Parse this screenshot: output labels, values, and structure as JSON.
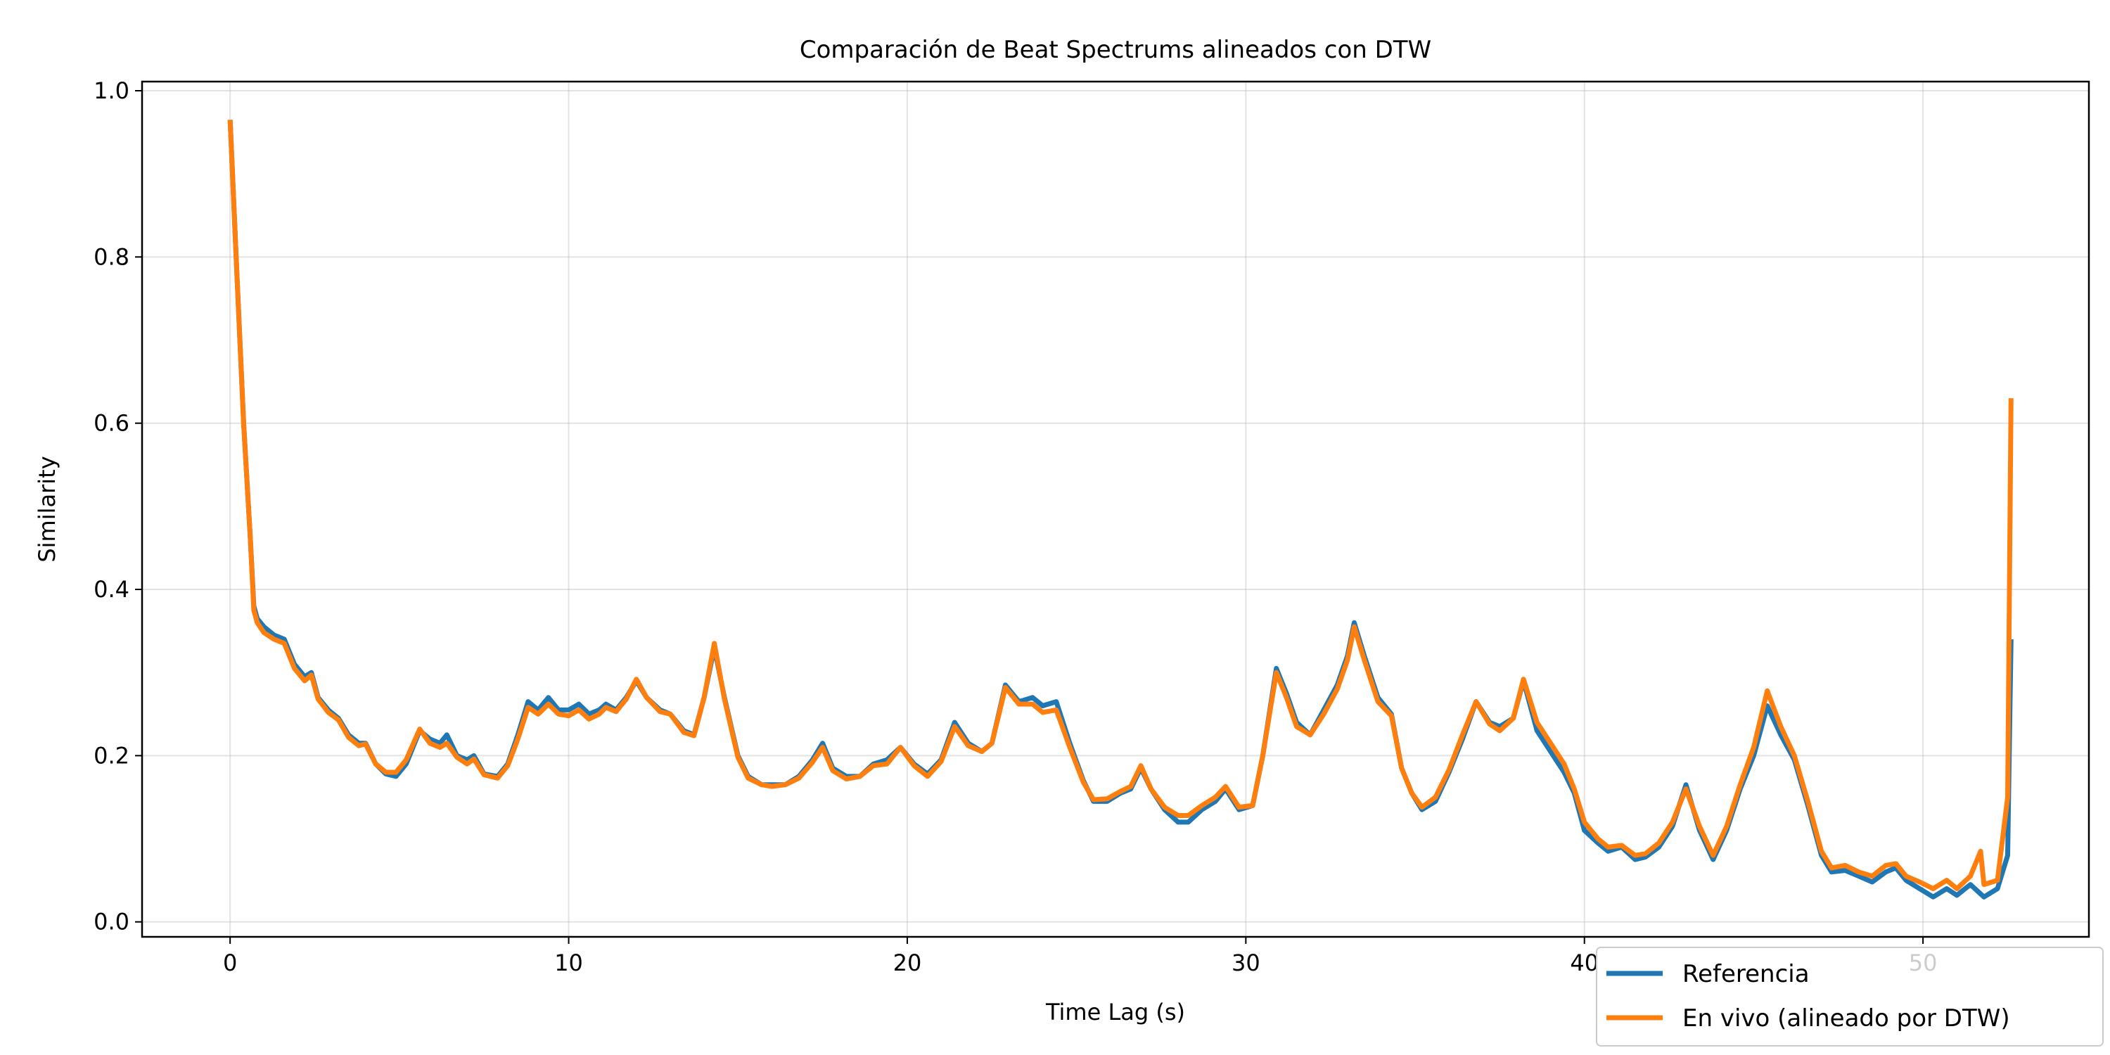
{
  "chart_data": {
    "type": "line",
    "title": "Comparación de Beat Spectrums alineados con DTW",
    "xlabel": "Time Lag (s)",
    "ylabel": "Similarity",
    "xlim": [
      -2.6,
      54.9
    ],
    "ylim": [
      -0.018,
      1.011
    ],
    "xticks": [
      0,
      10,
      20,
      30,
      40,
      50
    ],
    "xtick_labels": [
      "0",
      "10",
      "20",
      "30",
      "40",
      "50"
    ],
    "yticks": [
      0.0,
      0.2,
      0.4,
      0.6,
      0.8,
      1.0
    ],
    "ytick_labels": [
      "0.0",
      "0.2",
      "0.4",
      "0.6",
      "0.8",
      "1.0"
    ],
    "grid": true,
    "legend_position": "lower-right",
    "series": [
      {
        "name": "Referencia",
        "color": "#1f77b4",
        "points": [
          [
            0.0,
            0.965
          ],
          [
            0.2,
            0.78
          ],
          [
            0.4,
            0.6
          ],
          [
            0.6,
            0.46
          ],
          [
            0.7,
            0.38
          ],
          [
            0.8,
            0.365
          ],
          [
            1.0,
            0.355
          ],
          [
            1.3,
            0.345
          ],
          [
            1.6,
            0.34
          ],
          [
            1.9,
            0.31
          ],
          [
            2.2,
            0.295
          ],
          [
            2.4,
            0.3
          ],
          [
            2.6,
            0.27
          ],
          [
            2.9,
            0.255
          ],
          [
            3.2,
            0.245
          ],
          [
            3.5,
            0.225
          ],
          [
            3.8,
            0.215
          ],
          [
            4.0,
            0.215
          ],
          [
            4.3,
            0.19
          ],
          [
            4.6,
            0.178
          ],
          [
            4.9,
            0.175
          ],
          [
            5.2,
            0.19
          ],
          [
            5.6,
            0.23
          ],
          [
            5.9,
            0.22
          ],
          [
            6.2,
            0.215
          ],
          [
            6.4,
            0.225
          ],
          [
            6.7,
            0.2
          ],
          [
            7.0,
            0.195
          ],
          [
            7.2,
            0.2
          ],
          [
            7.5,
            0.178
          ],
          [
            7.9,
            0.175
          ],
          [
            8.2,
            0.19
          ],
          [
            8.5,
            0.225
          ],
          [
            8.8,
            0.265
          ],
          [
            9.1,
            0.255
          ],
          [
            9.4,
            0.27
          ],
          [
            9.7,
            0.255
          ],
          [
            10.0,
            0.255
          ],
          [
            10.3,
            0.262
          ],
          [
            10.6,
            0.25
          ],
          [
            10.9,
            0.255
          ],
          [
            11.1,
            0.262
          ],
          [
            11.4,
            0.255
          ],
          [
            11.7,
            0.27
          ],
          [
            12.0,
            0.29
          ],
          [
            12.3,
            0.27
          ],
          [
            12.7,
            0.255
          ],
          [
            13.0,
            0.25
          ],
          [
            13.4,
            0.23
          ],
          [
            13.7,
            0.225
          ],
          [
            14.0,
            0.27
          ],
          [
            14.3,
            0.33
          ],
          [
            14.6,
            0.27
          ],
          [
            15.0,
            0.2
          ],
          [
            15.3,
            0.175
          ],
          [
            15.7,
            0.165
          ],
          [
            16.0,
            0.165
          ],
          [
            16.4,
            0.165
          ],
          [
            16.8,
            0.175
          ],
          [
            17.2,
            0.195
          ],
          [
            17.5,
            0.215
          ],
          [
            17.8,
            0.185
          ],
          [
            18.2,
            0.175
          ],
          [
            18.6,
            0.175
          ],
          [
            19.0,
            0.19
          ],
          [
            19.4,
            0.195
          ],
          [
            19.8,
            0.21
          ],
          [
            20.2,
            0.19
          ],
          [
            20.6,
            0.178
          ],
          [
            21.0,
            0.195
          ],
          [
            21.4,
            0.24
          ],
          [
            21.8,
            0.215
          ],
          [
            22.2,
            0.205
          ],
          [
            22.5,
            0.215
          ],
          [
            22.9,
            0.285
          ],
          [
            23.3,
            0.265
          ],
          [
            23.7,
            0.27
          ],
          [
            24.0,
            0.26
          ],
          [
            24.4,
            0.265
          ],
          [
            24.8,
            0.215
          ],
          [
            25.2,
            0.17
          ],
          [
            25.5,
            0.145
          ],
          [
            25.9,
            0.145
          ],
          [
            26.3,
            0.155
          ],
          [
            26.6,
            0.16
          ],
          [
            26.9,
            0.185
          ],
          [
            27.2,
            0.16
          ],
          [
            27.6,
            0.135
          ],
          [
            28.0,
            0.12
          ],
          [
            28.3,
            0.12
          ],
          [
            28.7,
            0.135
          ],
          [
            29.1,
            0.145
          ],
          [
            29.4,
            0.16
          ],
          [
            29.8,
            0.135
          ],
          [
            30.2,
            0.14
          ],
          [
            30.5,
            0.2
          ],
          [
            30.9,
            0.305
          ],
          [
            31.2,
            0.275
          ],
          [
            31.5,
            0.24
          ],
          [
            31.9,
            0.225
          ],
          [
            32.3,
            0.255
          ],
          [
            32.7,
            0.285
          ],
          [
            33.0,
            0.32
          ],
          [
            33.2,
            0.36
          ],
          [
            33.5,
            0.32
          ],
          [
            33.9,
            0.27
          ],
          [
            34.3,
            0.25
          ],
          [
            34.6,
            0.185
          ],
          [
            34.9,
            0.155
          ],
          [
            35.2,
            0.135
          ],
          [
            35.6,
            0.145
          ],
          [
            36.0,
            0.18
          ],
          [
            36.4,
            0.22
          ],
          [
            36.8,
            0.265
          ],
          [
            37.2,
            0.24
          ],
          [
            37.5,
            0.235
          ],
          [
            37.9,
            0.245
          ],
          [
            38.2,
            0.29
          ],
          [
            38.6,
            0.23
          ],
          [
            39.0,
            0.205
          ],
          [
            39.4,
            0.18
          ],
          [
            39.7,
            0.155
          ],
          [
            40.0,
            0.11
          ],
          [
            40.4,
            0.095
          ],
          [
            40.7,
            0.085
          ],
          [
            41.1,
            0.09
          ],
          [
            41.5,
            0.075
          ],
          [
            41.8,
            0.078
          ],
          [
            42.2,
            0.09
          ],
          [
            42.6,
            0.115
          ],
          [
            43.0,
            0.165
          ],
          [
            43.4,
            0.11
          ],
          [
            43.8,
            0.075
          ],
          [
            44.2,
            0.11
          ],
          [
            44.6,
            0.16
          ],
          [
            45.0,
            0.2
          ],
          [
            45.4,
            0.26
          ],
          [
            45.8,
            0.225
          ],
          [
            46.2,
            0.195
          ],
          [
            46.6,
            0.14
          ],
          [
            47.0,
            0.08
          ],
          [
            47.3,
            0.06
          ],
          [
            47.7,
            0.062
          ],
          [
            48.1,
            0.055
          ],
          [
            48.5,
            0.048
          ],
          [
            48.9,
            0.06
          ],
          [
            49.2,
            0.065
          ],
          [
            49.5,
            0.05
          ],
          [
            49.9,
            0.04
          ],
          [
            50.3,
            0.03
          ],
          [
            50.7,
            0.04
          ],
          [
            51.0,
            0.032
          ],
          [
            51.4,
            0.045
          ],
          [
            51.8,
            0.03
          ],
          [
            52.2,
            0.04
          ],
          [
            52.5,
            0.08
          ],
          [
            52.6,
            0.34
          ]
        ]
      },
      {
        "name": "En vivo (alineado por DTW)",
        "color": "#ff7f0e",
        "points": [
          [
            0.0,
            0.965
          ],
          [
            0.2,
            0.78
          ],
          [
            0.4,
            0.6
          ],
          [
            0.6,
            0.46
          ],
          [
            0.7,
            0.375
          ],
          [
            0.8,
            0.36
          ],
          [
            1.0,
            0.348
          ],
          [
            1.3,
            0.34
          ],
          [
            1.6,
            0.335
          ],
          [
            1.9,
            0.305
          ],
          [
            2.2,
            0.29
          ],
          [
            2.4,
            0.297
          ],
          [
            2.6,
            0.268
          ],
          [
            2.9,
            0.252
          ],
          [
            3.2,
            0.243
          ],
          [
            3.5,
            0.222
          ],
          [
            3.8,
            0.212
          ],
          [
            4.0,
            0.214
          ],
          [
            4.3,
            0.19
          ],
          [
            4.6,
            0.18
          ],
          [
            4.9,
            0.18
          ],
          [
            5.2,
            0.195
          ],
          [
            5.6,
            0.232
          ],
          [
            5.9,
            0.215
          ],
          [
            6.2,
            0.21
          ],
          [
            6.4,
            0.215
          ],
          [
            6.7,
            0.198
          ],
          [
            7.0,
            0.19
          ],
          [
            7.2,
            0.196
          ],
          [
            7.5,
            0.177
          ],
          [
            7.9,
            0.173
          ],
          [
            8.2,
            0.188
          ],
          [
            8.5,
            0.22
          ],
          [
            8.8,
            0.258
          ],
          [
            9.1,
            0.25
          ],
          [
            9.4,
            0.262
          ],
          [
            9.7,
            0.25
          ],
          [
            10.0,
            0.248
          ],
          [
            10.3,
            0.255
          ],
          [
            10.6,
            0.244
          ],
          [
            10.9,
            0.25
          ],
          [
            11.1,
            0.258
          ],
          [
            11.4,
            0.253
          ],
          [
            11.7,
            0.268
          ],
          [
            12.0,
            0.292
          ],
          [
            12.3,
            0.27
          ],
          [
            12.7,
            0.253
          ],
          [
            13.0,
            0.25
          ],
          [
            13.4,
            0.228
          ],
          [
            13.7,
            0.224
          ],
          [
            14.0,
            0.27
          ],
          [
            14.3,
            0.335
          ],
          [
            14.6,
            0.268
          ],
          [
            15.0,
            0.198
          ],
          [
            15.3,
            0.173
          ],
          [
            15.7,
            0.165
          ],
          [
            16.0,
            0.163
          ],
          [
            16.4,
            0.165
          ],
          [
            16.8,
            0.173
          ],
          [
            17.2,
            0.192
          ],
          [
            17.5,
            0.21
          ],
          [
            17.8,
            0.182
          ],
          [
            18.2,
            0.172
          ],
          [
            18.6,
            0.175
          ],
          [
            19.0,
            0.188
          ],
          [
            19.4,
            0.19
          ],
          [
            19.8,
            0.21
          ],
          [
            20.2,
            0.188
          ],
          [
            20.6,
            0.175
          ],
          [
            21.0,
            0.193
          ],
          [
            21.4,
            0.235
          ],
          [
            21.8,
            0.212
          ],
          [
            22.2,
            0.205
          ],
          [
            22.5,
            0.215
          ],
          [
            22.9,
            0.282
          ],
          [
            23.3,
            0.262
          ],
          [
            23.7,
            0.262
          ],
          [
            24.0,
            0.252
          ],
          [
            24.4,
            0.255
          ],
          [
            24.8,
            0.21
          ],
          [
            25.2,
            0.168
          ],
          [
            25.5,
            0.147
          ],
          [
            25.9,
            0.148
          ],
          [
            26.3,
            0.157
          ],
          [
            26.6,
            0.163
          ],
          [
            26.9,
            0.188
          ],
          [
            27.2,
            0.16
          ],
          [
            27.6,
            0.138
          ],
          [
            28.0,
            0.128
          ],
          [
            28.3,
            0.128
          ],
          [
            28.7,
            0.14
          ],
          [
            29.1,
            0.15
          ],
          [
            29.4,
            0.163
          ],
          [
            29.8,
            0.138
          ],
          [
            30.2,
            0.14
          ],
          [
            30.5,
            0.2
          ],
          [
            30.9,
            0.3
          ],
          [
            31.2,
            0.27
          ],
          [
            31.5,
            0.235
          ],
          [
            31.9,
            0.225
          ],
          [
            32.3,
            0.25
          ],
          [
            32.7,
            0.28
          ],
          [
            33.0,
            0.315
          ],
          [
            33.2,
            0.355
          ],
          [
            33.5,
            0.315
          ],
          [
            33.9,
            0.265
          ],
          [
            34.3,
            0.248
          ],
          [
            34.6,
            0.185
          ],
          [
            34.9,
            0.155
          ],
          [
            35.2,
            0.138
          ],
          [
            35.6,
            0.15
          ],
          [
            36.0,
            0.183
          ],
          [
            36.4,
            0.225
          ],
          [
            36.8,
            0.265
          ],
          [
            37.2,
            0.238
          ],
          [
            37.5,
            0.23
          ],
          [
            37.9,
            0.245
          ],
          [
            38.2,
            0.292
          ],
          [
            38.6,
            0.24
          ],
          [
            39.0,
            0.215
          ],
          [
            39.4,
            0.19
          ],
          [
            39.7,
            0.16
          ],
          [
            40.0,
            0.12
          ],
          [
            40.4,
            0.1
          ],
          [
            40.7,
            0.09
          ],
          [
            41.1,
            0.092
          ],
          [
            41.5,
            0.08
          ],
          [
            41.8,
            0.082
          ],
          [
            42.2,
            0.095
          ],
          [
            42.6,
            0.12
          ],
          [
            43.0,
            0.16
          ],
          [
            43.4,
            0.115
          ],
          [
            43.8,
            0.08
          ],
          [
            44.2,
            0.115
          ],
          [
            44.6,
            0.165
          ],
          [
            45.0,
            0.21
          ],
          [
            45.4,
            0.278
          ],
          [
            45.8,
            0.235
          ],
          [
            46.2,
            0.2
          ],
          [
            46.6,
            0.145
          ],
          [
            47.0,
            0.085
          ],
          [
            47.3,
            0.065
          ],
          [
            47.7,
            0.068
          ],
          [
            48.1,
            0.06
          ],
          [
            48.5,
            0.055
          ],
          [
            48.9,
            0.068
          ],
          [
            49.2,
            0.07
          ],
          [
            49.5,
            0.055
          ],
          [
            49.9,
            0.048
          ],
          [
            50.3,
            0.04
          ],
          [
            50.7,
            0.05
          ],
          [
            51.0,
            0.04
          ],
          [
            51.4,
            0.055
          ],
          [
            51.7,
            0.085
          ],
          [
            51.8,
            0.045
          ],
          [
            52.2,
            0.05
          ],
          [
            52.5,
            0.15
          ],
          [
            52.6,
            0.63
          ]
        ]
      }
    ]
  }
}
